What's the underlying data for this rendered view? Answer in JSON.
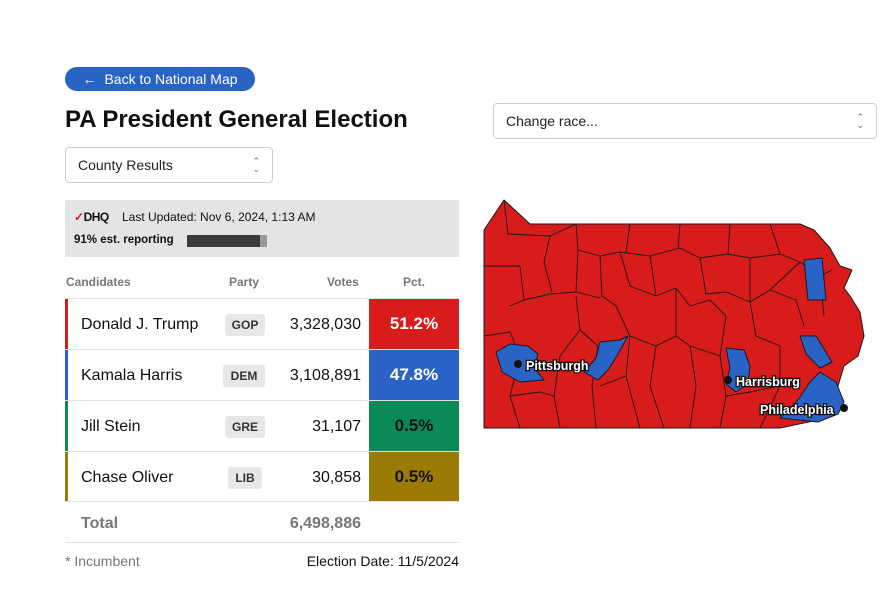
{
  "nav": {
    "back_label": "Back to National Map",
    "back_icon": "arrow-left-icon"
  },
  "title": "PA President General Election",
  "view_select": {
    "value": "County Results",
    "icon": "chevron-updown-icon"
  },
  "race_select": {
    "value": "Change race...",
    "icon": "chevron-updown-icon"
  },
  "status": {
    "logo_text": "DDHQ",
    "last_updated": "Last Updated: Nov 6, 2024, 1:13 AM",
    "reporting_label": "91% est. reporting",
    "reporting_pct": 91
  },
  "table": {
    "headers": {
      "candidates": "Candidates",
      "party": "Party",
      "votes": "Votes",
      "pct": "Pct."
    },
    "rows": [
      {
        "name": "Donald J. Trump",
        "party": "GOP",
        "votes": "3,328,030",
        "pct": "51.2%",
        "color": "#d81b1b",
        "pct_text_color": "#ffffff"
      },
      {
        "name": "Kamala Harris",
        "party": "DEM",
        "votes": "3,108,891",
        "pct": "47.8%",
        "color": "#2a63c6",
        "pct_text_color": "#ffffff"
      },
      {
        "name": "Jill Stein",
        "party": "GRE",
        "votes": "31,107",
        "pct": "0.5%",
        "color": "#0a8a55",
        "pct_text_color": "#111111"
      },
      {
        "name": "Chase Oliver",
        "party": "LIB",
        "votes": "30,858",
        "pct": "0.5%",
        "color": "#9b7a05",
        "pct_text_color": "#111111"
      }
    ],
    "total_label": "Total",
    "total_votes": "6,498,886"
  },
  "footer": {
    "incumbent_note": "* Incumbent",
    "election_date": "Election Date: 11/5/2024"
  },
  "map": {
    "colors": {
      "gop": "#d81b1b",
      "dem": "#2a63c6",
      "border": "#1a1a1a"
    },
    "cities": [
      "Pittsburgh",
      "Harrisburg",
      "Philadelphia"
    ]
  }
}
